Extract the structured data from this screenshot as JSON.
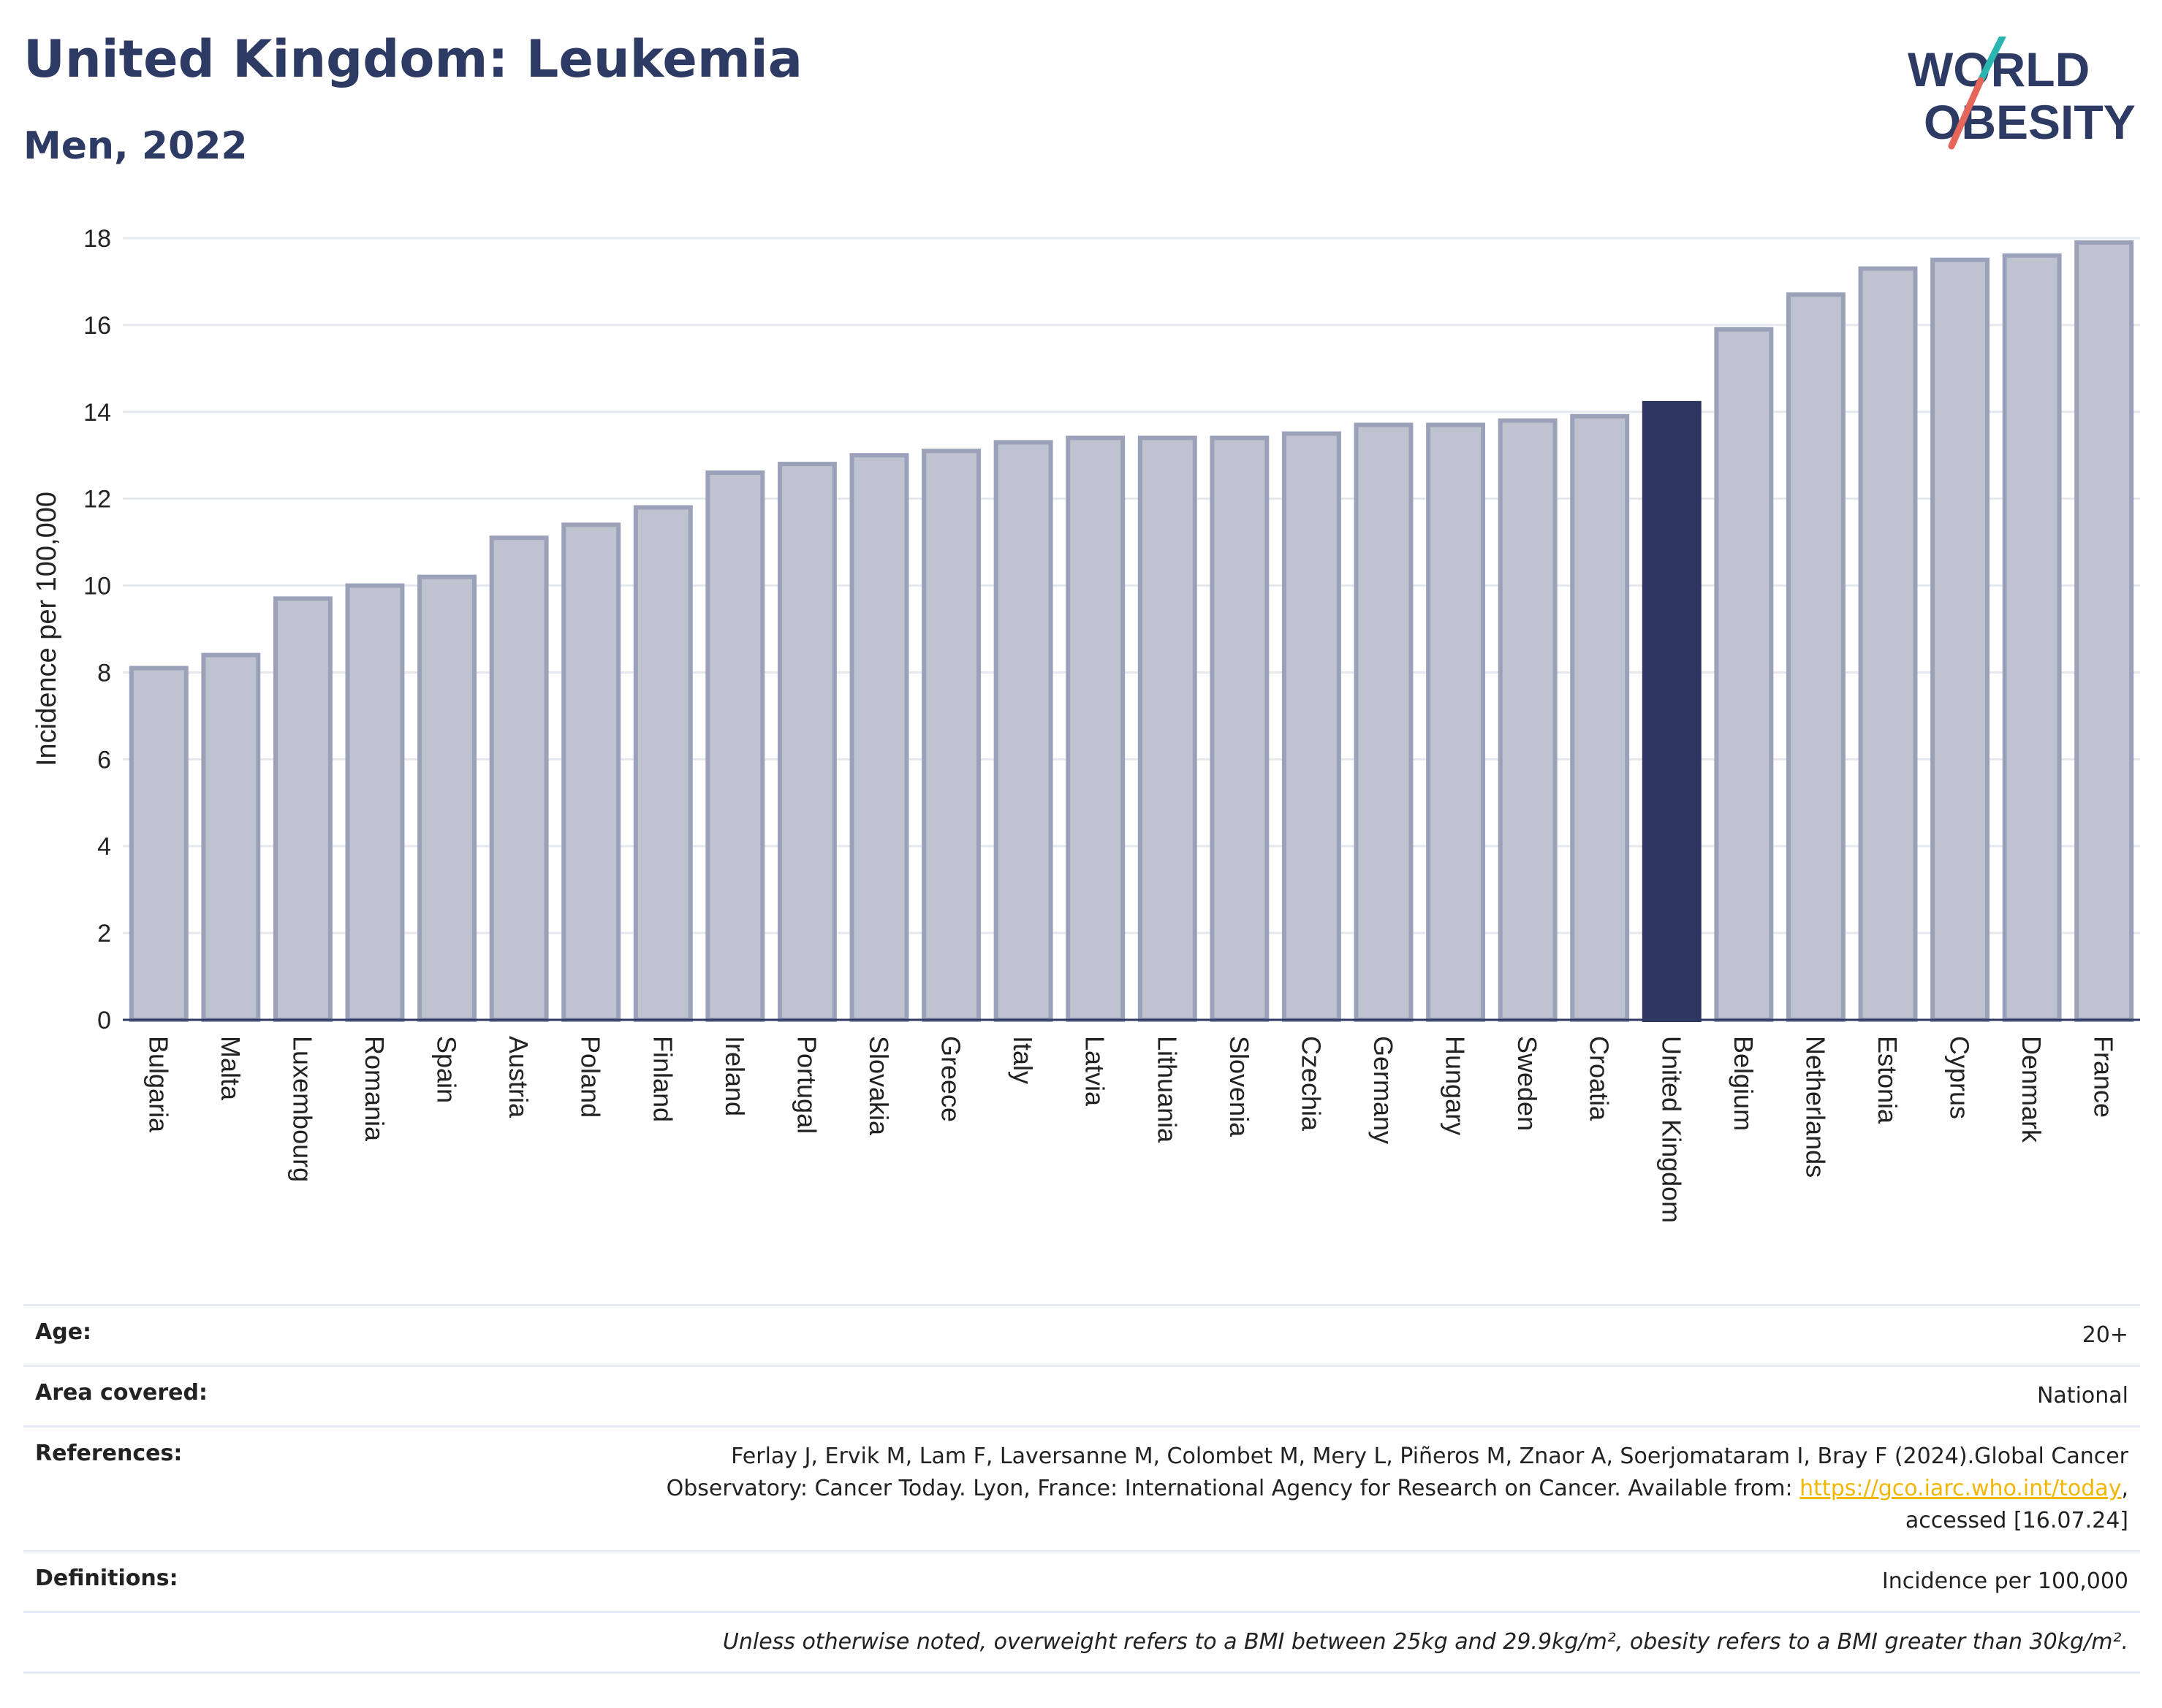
{
  "header": {
    "title": "United Kingdom: Leukemia",
    "subtitle": "Men, 2022"
  },
  "logo": {
    "line1": "WORLD",
    "line2": "OBESITY"
  },
  "chart_data": {
    "type": "bar",
    "ylabel": "Incidence per 100,000",
    "xlabel": "",
    "ylim": [
      0,
      18
    ],
    "yticks": [
      0,
      2,
      4,
      6,
      8,
      10,
      12,
      14,
      16,
      18
    ],
    "grid": true,
    "highlight": "United Kingdom",
    "colors": {
      "bar": "#bfc3d0",
      "bar_edge": "#9aa1b8",
      "highlight": "#2d3561"
    },
    "categories": [
      "Bulgaria",
      "Malta",
      "Luxembourg",
      "Romania",
      "Spain",
      "Austria",
      "Poland",
      "Finland",
      "Ireland",
      "Portugal",
      "Slovakia",
      "Greece",
      "Italy",
      "Latvia",
      "Lithuania",
      "Slovenia",
      "Czechia",
      "Germany",
      "Hungary",
      "Sweden",
      "Croatia",
      "United Kingdom",
      "Belgium",
      "Netherlands",
      "Estonia",
      "Cyprus",
      "Denmark",
      "France"
    ],
    "values": [
      8.1,
      8.4,
      9.7,
      10.0,
      10.2,
      11.1,
      11.4,
      11.8,
      12.6,
      12.8,
      13.0,
      13.1,
      13.3,
      13.4,
      13.4,
      13.4,
      13.5,
      13.7,
      13.7,
      13.8,
      13.9,
      14.2,
      15.9,
      16.7,
      17.3,
      17.5,
      17.6,
      17.9
    ]
  },
  "meta": {
    "age_label": "Age:",
    "age_value": "20+",
    "area_label": "Area covered:",
    "area_value": "National",
    "ref_label": "References:",
    "ref_text_1": "Ferlay J, Ervik M, Lam F, Laversanne M, Colombet M, Mery L, Piñeros M, Znaor A, Soerjomataram I, Bray F (2024).Global Cancer",
    "ref_text_2": "Observatory: Cancer Today. Lyon, France: International Agency for Research on Cancer. Available from: ",
    "ref_link": "https://gco.iarc.who.int/today",
    "ref_text_3": ",",
    "ref_text_4": "accessed [16.07.24]",
    "def_label": "Definitions:",
    "def_value": "Incidence per 100,000",
    "note": "Unless otherwise noted, overweight refers to a BMI between 25kg and 29.9kg/m², obesity refers to a BMI greater than 30kg/m²."
  }
}
